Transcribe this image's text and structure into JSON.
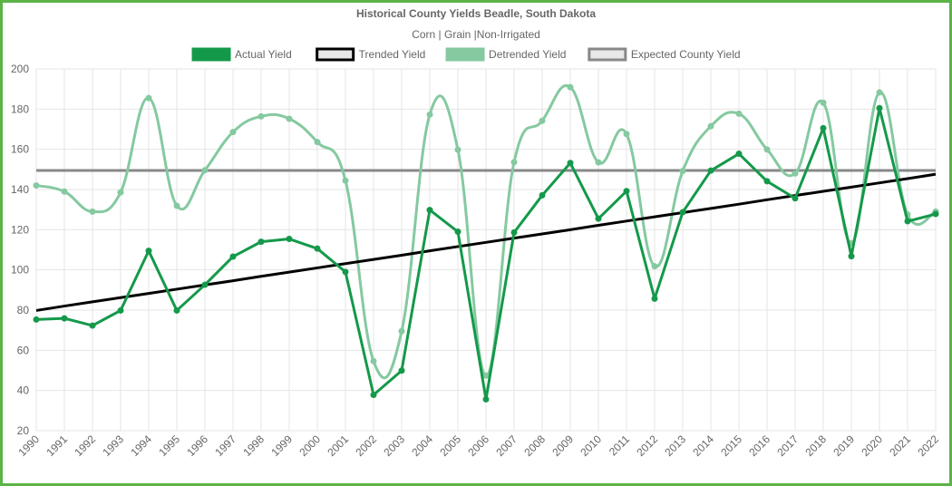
{
  "chart_data": {
    "type": "line",
    "title": "Historical County Yields Beadle, South Dakota",
    "subtitle": "Corn | Grain |Non-Irrigated",
    "xlabel": "",
    "ylabel": "",
    "ylim": [
      20,
      200
    ],
    "yticks": [
      20,
      40,
      60,
      80,
      100,
      120,
      140,
      160,
      180,
      200
    ],
    "grid": true,
    "legend_position": "top",
    "categories": [
      "1990",
      "1991",
      "1992",
      "1993",
      "1994",
      "1995",
      "1996",
      "1997",
      "1998",
      "1999",
      "2000",
      "2001",
      "2002",
      "2003",
      "2004",
      "2005",
      "2006",
      "2007",
      "2008",
      "2009",
      "2010",
      "2011",
      "2012",
      "2013",
      "2014",
      "2015",
      "2016",
      "2017",
      "2018",
      "2019",
      "2020",
      "2021",
      "2022"
    ],
    "series": [
      {
        "name": "Actual Yield",
        "color": "#14994a",
        "curve": "linear",
        "values": [
          75.3,
          75.9,
          72.3,
          79.8,
          109.5,
          79.8,
          92.6,
          106.6,
          114.0,
          115.4,
          110.6,
          99.0,
          37.8,
          49.9,
          129.8,
          119.0,
          35.6,
          118.6,
          137.1,
          153.2,
          125.5,
          139.2,
          85.7,
          128.7,
          149.4,
          157.8,
          144.1,
          135.6,
          170.5,
          106.8,
          180.5,
          124.2,
          127.8
        ]
      },
      {
        "name": "Trended Yield",
        "color": "#000000",
        "curve": "linear",
        "values": [
          79.8,
          82.0,
          84.1,
          86.2,
          88.3,
          90.4,
          92.5,
          94.6,
          96.8,
          98.9,
          101.0,
          103.1,
          105.2,
          107.3,
          109.5,
          111.6,
          113.7,
          115.8,
          117.9,
          120.0,
          122.2,
          124.3,
          126.4,
          128.5,
          130.6,
          132.7,
          134.9,
          137.0,
          139.1,
          141.2,
          143.3,
          145.4,
          147.6
        ]
      },
      {
        "name": "Detrended Yield",
        "color": "#85c9a0",
        "curve": "smooth",
        "values": [
          142.0,
          139.0,
          129.0,
          138.6,
          185.5,
          131.9,
          149.6,
          168.6,
          176.4,
          175.2,
          163.6,
          144.4,
          54.6,
          69.5,
          177.3,
          159.8,
          47.4,
          153.6,
          174.2,
          190.9,
          153.5,
          167.6,
          101.8,
          149.2,
          171.5,
          177.7,
          159.9,
          148.0,
          183.2,
          113.2,
          188.3,
          127.6,
          129.0
        ]
      },
      {
        "name": "Expected County Yield",
        "color": "#888888",
        "curve": "linear",
        "values": [
          149.5,
          149.5,
          149.5,
          149.5,
          149.5,
          149.5,
          149.5,
          149.5,
          149.5,
          149.5,
          149.5,
          149.5,
          149.5,
          149.5,
          149.5,
          149.5,
          149.5,
          149.5,
          149.5,
          149.5,
          149.5,
          149.5,
          149.5,
          149.5,
          149.5,
          149.5,
          149.5,
          149.5,
          149.5,
          149.5,
          149.5,
          149.5,
          149.5
        ]
      }
    ]
  }
}
